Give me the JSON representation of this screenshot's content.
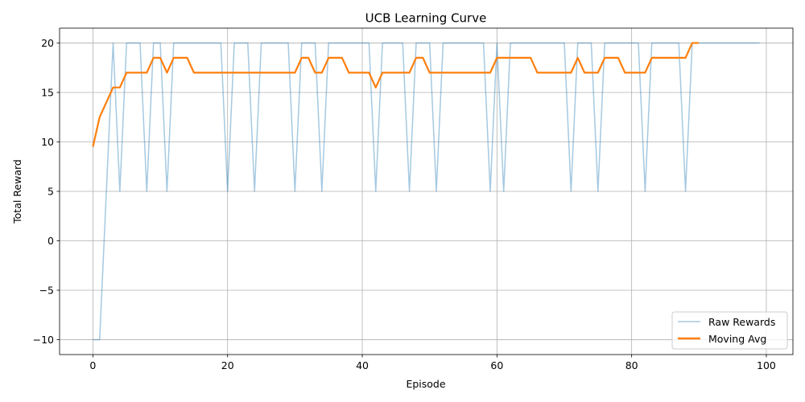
{
  "chart_data": {
    "type": "line",
    "title": "UCB Learning Curve",
    "xlabel": "Episode",
    "ylabel": "Total Reward",
    "xlim": [
      -4.95,
      103.95
    ],
    "ylim": [
      -11.5,
      21.5
    ],
    "xticks": [
      0,
      20,
      40,
      60,
      80,
      100
    ],
    "yticks": [
      -10,
      -5,
      0,
      5,
      10,
      15,
      20
    ],
    "grid": true,
    "legend": "lower-right",
    "series": [
      {
        "name": "Raw Rewards",
        "color": "#1f77b4",
        "x": [
          0,
          1,
          2,
          3,
          4,
          5,
          6,
          7,
          8,
          9,
          10,
          11,
          12,
          13,
          14,
          15,
          16,
          17,
          18,
          19,
          20,
          21,
          22,
          23,
          24,
          25,
          26,
          27,
          28,
          29,
          30,
          31,
          32,
          33,
          34,
          35,
          36,
          37,
          38,
          39,
          40,
          41,
          42,
          43,
          44,
          45,
          46,
          47,
          48,
          49,
          50,
          51,
          52,
          53,
          54,
          55,
          56,
          57,
          58,
          59,
          60,
          61,
          62,
          63,
          64,
          65,
          66,
          67,
          68,
          69,
          70,
          71,
          72,
          73,
          74,
          75,
          76,
          77,
          78,
          79,
          80,
          81,
          82,
          83,
          84,
          85,
          86,
          87,
          88,
          89,
          90,
          91,
          92,
          93,
          94,
          95,
          96,
          97,
          98,
          99
        ],
        "values": [
          -10,
          -10,
          5,
          20,
          5,
          20,
          20,
          20,
          5,
          20,
          20,
          5,
          20,
          20,
          20,
          20,
          20,
          20,
          20,
          20,
          5,
          20,
          20,
          20,
          5,
          20,
          20,
          20,
          20,
          20,
          5,
          20,
          20,
          20,
          5,
          20,
          20,
          20,
          20,
          20,
          20,
          20,
          5,
          20,
          20,
          20,
          20,
          5,
          20,
          20,
          20,
          5,
          20,
          20,
          20,
          20,
          20,
          20,
          20,
          5,
          20,
          5,
          20,
          20,
          20,
          20,
          20,
          20,
          20,
          20,
          20,
          5,
          20,
          20,
          20,
          5,
          20,
          20,
          20,
          20,
          20,
          20,
          5,
          20,
          20,
          20,
          20,
          20,
          5,
          20,
          20,
          20,
          20,
          20,
          20,
          20,
          20,
          20,
          20,
          20
        ]
      },
      {
        "name": "Moving Avg",
        "color": "#ff7f0e",
        "x": [
          0,
          1,
          2,
          3,
          4,
          5,
          6,
          7,
          8,
          9,
          10,
          11,
          12,
          13,
          14,
          15,
          16,
          17,
          18,
          19,
          20,
          21,
          22,
          23,
          24,
          25,
          26,
          27,
          28,
          29,
          30,
          31,
          32,
          33,
          34,
          35,
          36,
          37,
          38,
          39,
          40,
          41,
          42,
          43,
          44,
          45,
          46,
          47,
          48,
          49,
          50,
          51,
          52,
          53,
          54,
          55,
          56,
          57,
          58,
          59,
          60,
          61,
          62,
          63,
          64,
          65,
          66,
          67,
          68,
          69,
          70,
          71,
          72,
          73,
          74,
          75,
          76,
          77,
          78,
          79,
          80,
          81,
          82,
          83,
          84,
          85,
          86,
          87,
          88,
          89,
          90
        ],
        "values": [
          9.5,
          12.5,
          14,
          15.5,
          15.5,
          17,
          17,
          17,
          17,
          18.5,
          18.5,
          17,
          18.5,
          18.5,
          18.5,
          17,
          17,
          17,
          17,
          17,
          17,
          17,
          17,
          17,
          17,
          17,
          17,
          17,
          17,
          17,
          17,
          18.5,
          18.5,
          17,
          17,
          18.5,
          18.5,
          18.5,
          17,
          17,
          17,
          17,
          15.5,
          17,
          17,
          17,
          17,
          17,
          18.5,
          18.5,
          17,
          17,
          17,
          17,
          17,
          17,
          17,
          17,
          17,
          17,
          18.5,
          18.5,
          18.5,
          18.5,
          18.5,
          18.5,
          17,
          17,
          17,
          17,
          17,
          17,
          18.5,
          17,
          17,
          17,
          18.5,
          18.5,
          18.5,
          17,
          17,
          17,
          17,
          18.5,
          18.5,
          18.5,
          18.5,
          18.5,
          18.5,
          20,
          20
        ]
      }
    ]
  }
}
